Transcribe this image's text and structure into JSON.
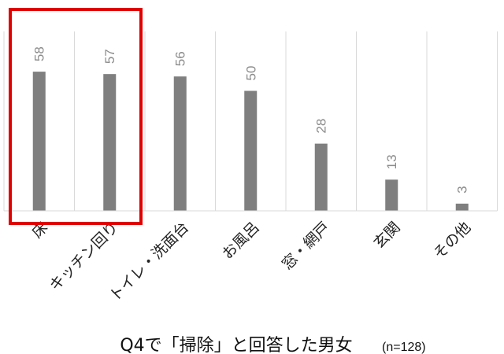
{
  "chart_data": {
    "type": "bar",
    "categories": [
      "床",
      "キッチン回り",
      "トイレ・洗面台",
      "お風呂",
      "窓・網戸",
      "玄関",
      "その他"
    ],
    "values": [
      58,
      57,
      56,
      50,
      28,
      13,
      3
    ],
    "ylim": [
      0,
      60
    ],
    "grid": "vertical-separators",
    "legend": "none",
    "caption": "Q4で「掃除」と回答した男女",
    "note": "(n=128)",
    "highlight": {
      "categories": [
        "床",
        "キッチン回り"
      ],
      "color": "#e00000"
    },
    "bar_color": "#7f7f7f",
    "label_color": "#8c8c8c",
    "separator_color": "#d9d9d9"
  }
}
